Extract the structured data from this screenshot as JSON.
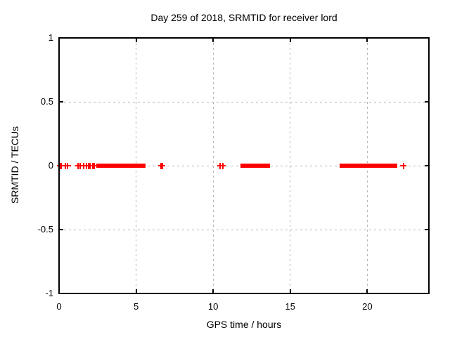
{
  "chart_data": {
    "type": "scatter",
    "title": "Day 259 of 2018, SRMTID for receiver lord",
    "xlabel": "GPS time / hours",
    "ylabel": "SRMTID / TECUs",
    "xlim": [
      0,
      24
    ],
    "ylim": [
      -1,
      1
    ],
    "xticks": [
      0,
      5,
      10,
      15,
      20
    ],
    "yticks": [
      1,
      0.5,
      0,
      -0.5,
      -1
    ],
    "xtick_labels": [
      "0",
      "5",
      "10",
      "15",
      "20"
    ],
    "ytick_labels": [
      "1",
      "0.5",
      "0",
      "-0.5",
      "-1"
    ],
    "grid": true,
    "legend": "none",
    "marker": "plus",
    "marker_color": "#ff0000",
    "grid_color": "#b4b4b4",
    "axis_color": "#000000",
    "series": [
      {
        "name": "SRMTID",
        "y_value": 0,
        "points_x_hours": [
          0.07,
          0.15,
          0.39,
          0.57,
          1.24,
          1.39,
          1.6,
          1.78,
          1.9,
          2.0,
          2.18,
          2.28,
          6.62,
          6.7,
          10.45,
          10.63,
          22.35
        ],
        "dense_runs_x_hours": [
          [
            2.42,
            5.63
          ],
          [
            11.76,
            13.68
          ],
          [
            18.22,
            21.93
          ]
        ]
      }
    ]
  }
}
